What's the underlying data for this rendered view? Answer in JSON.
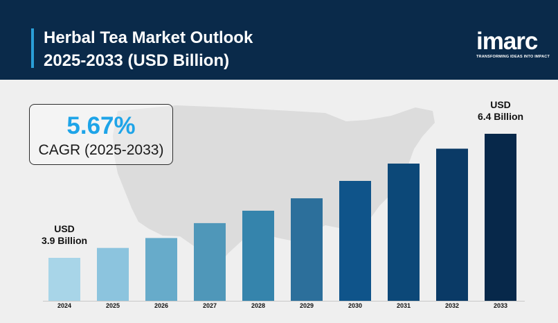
{
  "header": {
    "title_line1": "Herbal Tea Market Outlook",
    "title_line2": "2025-2033 (USD Billion)"
  },
  "logo": {
    "word": "imarc",
    "tagline": "TRANSFORMING IDEAS INTO IMPACT"
  },
  "cagr": {
    "value": "5.67%",
    "label": "CAGR (2025-2033)"
  },
  "annotations": {
    "start_line1": "USD",
    "start_line2": "3.9 Billion",
    "end_line1": "USD",
    "end_line2": "6.4 Billion"
  },
  "colors": {
    "header_bg": "#0a2a4a",
    "accent": "#2a9fd8",
    "cagr_text": "#1ea4e8",
    "bars": [
      "#a8d5e8",
      "#8cc4de",
      "#67abca",
      "#4f97b9",
      "#3584ac",
      "#2c6f9b",
      "#0f548a",
      "#0c4878",
      "#0a3a66",
      "#07284a"
    ]
  },
  "chart_data": {
    "type": "bar",
    "title": "Herbal Tea Market Outlook 2025-2033 (USD Billion)",
    "categories": [
      "2024",
      "2025",
      "2026",
      "2027",
      "2028",
      "2029",
      "2030",
      "2031",
      "2032",
      "2033"
    ],
    "values": [
      3.9,
      4.1,
      4.3,
      4.6,
      4.85,
      5.1,
      5.45,
      5.8,
      6.1,
      6.4
    ],
    "labeled_values": {
      "2024": "3.9 Billion",
      "2033": "6.4 Billion"
    },
    "xlabel": "",
    "ylabel": "",
    "grid": false,
    "legend": "none"
  }
}
